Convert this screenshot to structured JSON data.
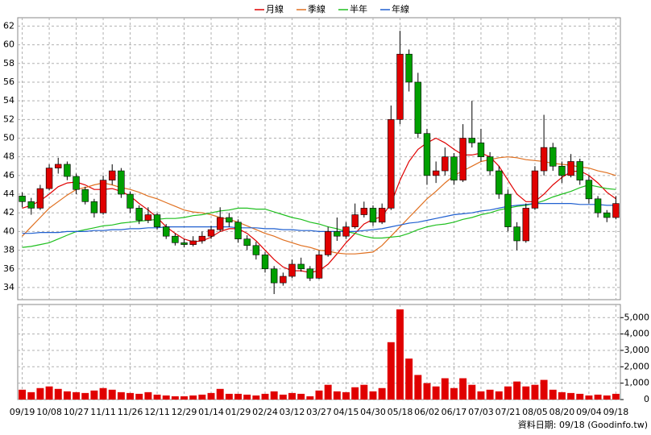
{
  "chart_data": {
    "type": "candlestick",
    "categories": [
      "09/19",
      null,
      null,
      "10/08",
      null,
      null,
      "10/27",
      null,
      null,
      "11/11",
      null,
      null,
      "11/26",
      null,
      null,
      "12/11",
      null,
      null,
      "12/29",
      null,
      null,
      "01/14",
      null,
      null,
      "01/29",
      null,
      null,
      "02/24",
      null,
      null,
      "03/12",
      null,
      null,
      "03/27",
      null,
      null,
      "04/15",
      null,
      null,
      "04/30",
      null,
      null,
      "05/18",
      null,
      null,
      "06/02",
      null,
      null,
      "06/17",
      null,
      null,
      "07/03",
      null,
      null,
      "07/21",
      null,
      null,
      "08/05",
      null,
      null,
      "08/20",
      null,
      null,
      "09/04",
      null,
      null,
      "09/18"
    ],
    "ohlc": [
      [
        43.8,
        44.2,
        42.6,
        43.2
      ],
      [
        43.2,
        43.6,
        41.8,
        42.5
      ],
      [
        42.5,
        45.0,
        42.3,
        44.6
      ],
      [
        44.6,
        47.2,
        44.4,
        46.8
      ],
      [
        46.8,
        47.9,
        46.2,
        47.2
      ],
      [
        47.2,
        47.5,
        45.5,
        45.9
      ],
      [
        45.9,
        46.2,
        44.0,
        44.5
      ],
      [
        44.5,
        44.8,
        42.9,
        43.2
      ],
      [
        43.2,
        43.5,
        41.5,
        42.0
      ],
      [
        42.0,
        46.0,
        41.8,
        45.5
      ],
      [
        45.5,
        47.2,
        45.0,
        46.5
      ],
      [
        46.5,
        46.8,
        43.6,
        44.0
      ],
      [
        44.0,
        44.3,
        42.0,
        42.5
      ],
      [
        42.5,
        42.8,
        40.8,
        41.2
      ],
      [
        41.2,
        42.6,
        40.9,
        41.8
      ],
      [
        41.8,
        42.0,
        40.2,
        40.5
      ],
      [
        40.5,
        40.8,
        39.2,
        39.5
      ],
      [
        39.5,
        39.8,
        38.5,
        38.8
      ],
      [
        38.8,
        39.2,
        38.3,
        38.6
      ],
      [
        38.6,
        39.5,
        38.4,
        39.0
      ],
      [
        39.0,
        40.0,
        38.7,
        39.5
      ],
      [
        39.5,
        40.6,
        39.2,
        40.2
      ],
      [
        40.2,
        42.6,
        40.0,
        41.5
      ],
      [
        41.5,
        42.0,
        40.5,
        41.0
      ],
      [
        41.0,
        41.3,
        38.8,
        39.2
      ],
      [
        39.2,
        39.6,
        38.0,
        38.5
      ],
      [
        38.5,
        38.9,
        37.0,
        37.5
      ],
      [
        37.5,
        37.8,
        35.6,
        36.0
      ],
      [
        36.0,
        36.3,
        33.3,
        34.5
      ],
      [
        34.5,
        35.6,
        34.2,
        35.2
      ],
      [
        35.2,
        37.0,
        35.0,
        36.5
      ],
      [
        36.5,
        37.2,
        35.7,
        36.0
      ],
      [
        36.0,
        36.3,
        34.7,
        35.0
      ],
      [
        35.0,
        38.0,
        34.9,
        37.5
      ],
      [
        37.5,
        40.5,
        37.3,
        40.0
      ],
      [
        40.0,
        41.5,
        39.0,
        39.5
      ],
      [
        39.5,
        41.0,
        39.2,
        40.5
      ],
      [
        40.5,
        43.0,
        40.3,
        41.8
      ],
      [
        41.8,
        43.2,
        41.5,
        42.5
      ],
      [
        42.5,
        42.8,
        40.6,
        41.0
      ],
      [
        41.0,
        43.0,
        40.8,
        42.5
      ],
      [
        42.5,
        53.5,
        42.3,
        52.0
      ],
      [
        52.0,
        61.5,
        51.5,
        59.0
      ],
      [
        59.0,
        59.5,
        55.0,
        56.0
      ],
      [
        56.0,
        57.0,
        50.0,
        50.5
      ],
      [
        50.5,
        51.0,
        45.0,
        46.0
      ],
      [
        46.0,
        47.5,
        45.2,
        46.5
      ],
      [
        46.5,
        49.0,
        46.0,
        48.0
      ],
      [
        48.0,
        48.4,
        45.0,
        45.5
      ],
      [
        45.5,
        51.5,
        45.3,
        50.0
      ],
      [
        50.0,
        54.0,
        49.0,
        49.5
      ],
      [
        49.5,
        51.0,
        47.5,
        48.0
      ],
      [
        48.0,
        48.5,
        46.0,
        46.5
      ],
      [
        46.5,
        47.0,
        43.5,
        44.0
      ],
      [
        44.0,
        44.5,
        40.0,
        40.5
      ],
      [
        40.5,
        41.0,
        38.0,
        39.0
      ],
      [
        39.0,
        43.0,
        38.8,
        42.5
      ],
      [
        42.5,
        47.0,
        42.3,
        46.5
      ],
      [
        46.5,
        52.5,
        46.0,
        49.0
      ],
      [
        49.0,
        49.5,
        46.5,
        47.0
      ],
      [
        47.0,
        47.5,
        45.2,
        46.0
      ],
      [
        46.0,
        48.3,
        45.8,
        47.5
      ],
      [
        47.5,
        47.8,
        45.0,
        45.5
      ],
      [
        45.5,
        46.0,
        43.0,
        43.5
      ],
      [
        43.5,
        43.8,
        41.5,
        42.0
      ],
      [
        42.0,
        42.3,
        41.0,
        41.5
      ],
      [
        41.5,
        43.8,
        41.3,
        43.0
      ]
    ],
    "up_color": "#e00000",
    "down_color": "#00a000",
    "series": [
      {
        "name": "月線",
        "color": "#e00000",
        "values": [
          42.5,
          42.8,
          43.3,
          44,
          44.8,
          45.2,
          45.3,
          45,
          44.5,
          44.5,
          44.6,
          44.3,
          43.8,
          43,
          42.3,
          41.5,
          40.5,
          39.8,
          39.2,
          38.9,
          39,
          39.4,
          40,
          40.3,
          40.3,
          39.8,
          39,
          38,
          37,
          36.2,
          35.8,
          35.8,
          35.6,
          35.8,
          36.5,
          37.6,
          38.8,
          39.8,
          40.8,
          41.3,
          41.6,
          43,
          45.5,
          47.5,
          48.8,
          49.5,
          50,
          49.5,
          48.8,
          48.2,
          48.2,
          48.4,
          48,
          47,
          45.5,
          44,
          43.2,
          43.2,
          44,
          45,
          45.8,
          46.4,
          46.5,
          46,
          45.2,
          44.2,
          43.5
        ]
      },
      {
        "name": "季線",
        "color": "#e07020",
        "values": [
          39.5,
          40.5,
          41.5,
          42.5,
          43.2,
          43.9,
          44.5,
          44.7,
          45.0,
          45.2,
          45.0,
          44.7,
          44.5,
          44.2,
          43.8,
          43.5,
          43.1,
          42.7,
          42.3,
          42.1,
          42.0,
          41.8,
          41.5,
          41.3,
          41.0,
          40.6,
          40.2,
          39.8,
          39.5,
          39.1,
          38.8,
          38.5,
          38.3,
          38.0,
          37.9,
          37.7,
          37.6,
          37.6,
          37.7,
          37.8,
          38.5,
          39.5,
          40.5,
          41.5,
          42.5,
          43.5,
          44.3,
          45.2,
          46.0,
          46.5,
          47.0,
          47.5,
          47.7,
          47.9,
          48.0,
          47.9,
          47.7,
          47.6,
          47.5,
          47.3,
          47.2,
          47.1,
          46.9,
          46.8,
          46.5,
          46.3,
          46.0
        ]
      },
      {
        "name": "半年",
        "color": "#20c020",
        "values": [
          38.3,
          38.4,
          38.6,
          38.8,
          39.2,
          39.6,
          40.0,
          40.2,
          40.4,
          40.6,
          40.7,
          40.9,
          41.0,
          41.1,
          41.2,
          41.3,
          41.4,
          41.4,
          41.5,
          41.7,
          41.8,
          42.0,
          42.2,
          42.3,
          42.5,
          42.5,
          42.4,
          42.4,
          42.1,
          41.8,
          41.5,
          41.3,
          41.0,
          40.8,
          40.5,
          40.3,
          40.0,
          39.8,
          39.5,
          39.3,
          39.3,
          39.4,
          39.5,
          39.8,
          40.2,
          40.5,
          40.7,
          40.8,
          41.0,
          41.3,
          41.5,
          41.8,
          42.0,
          42.3,
          42.5,
          42.7,
          42.8,
          43.0,
          43.3,
          43.7,
          44.0,
          44.3,
          44.7,
          45.0,
          44.8,
          44.6,
          44.5
        ]
      },
      {
        "name": "年線",
        "color": "#2060d0",
        "values": [
          39.8,
          39.8,
          39.9,
          39.9,
          39.9,
          40.0,
          40.0,
          40.0,
          40.1,
          40.1,
          40.2,
          40.2,
          40.3,
          40.3,
          40.4,
          40.4,
          40.5,
          40.5,
          40.5,
          40.5,
          40.5,
          40.5,
          40.5,
          40.5,
          40.4,
          40.4,
          40.4,
          40.3,
          40.3,
          40.2,
          40.2,
          40.1,
          40.1,
          40.0,
          40.0,
          40.0,
          40.0,
          40.0,
          40.1,
          40.2,
          40.3,
          40.5,
          40.7,
          40.9,
          41.0,
          41.2,
          41.4,
          41.6,
          41.8,
          41.9,
          42.0,
          42.2,
          42.3,
          42.5,
          42.7,
          42.8,
          42.9,
          43.0,
          43.0,
          43.0,
          43.0,
          43.0,
          42.9,
          42.9,
          42.9,
          42.8,
          42.8
        ]
      }
    ],
    "ylim": [
      32.7,
      62.9
    ],
    "yticks": [
      34,
      36,
      38,
      40,
      42,
      44,
      46,
      48,
      50,
      52,
      54,
      56,
      58,
      60,
      62
    ],
    "volume": {
      "color": "#e00000",
      "values": [
        600,
        450,
        700,
        800,
        650,
        500,
        450,
        400,
        550,
        700,
        600,
        450,
        400,
        350,
        450,
        300,
        250,
        200,
        200,
        250,
        300,
        400,
        650,
        350,
        350,
        300,
        250,
        350,
        500,
        300,
        400,
        350,
        200,
        550,
        900,
        500,
        450,
        750,
        900,
        500,
        700,
        3500,
        5500,
        2500,
        1500,
        1000,
        800,
        1300,
        700,
        1300,
        900,
        500,
        600,
        500,
        800,
        1100,
        800,
        900,
        1200,
        600,
        450,
        400,
        350,
        250,
        300,
        250,
        350
      ]
    },
    "y2lim": [
      0,
      5800
    ],
    "y2ticks": [
      0,
      {
        "value": 1000,
        "label": "1,000"
      },
      {
        "value": 2000,
        "label": "2,000"
      },
      {
        "value": 3000,
        "label": "3,000"
      },
      {
        "value": 4000,
        "label": "4,000"
      },
      {
        "value": 5000,
        "label": "5,000"
      }
    ],
    "grid": true,
    "legend": "top",
    "source": "資料日期: 09/18 (Goodinfo.tw)"
  }
}
